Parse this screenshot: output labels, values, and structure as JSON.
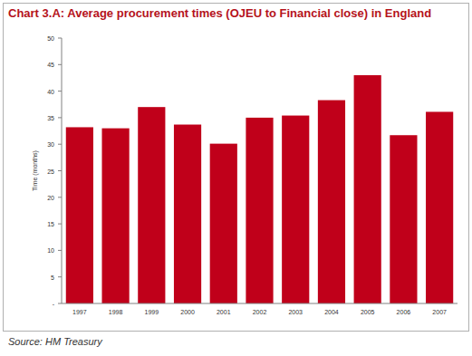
{
  "chart_data": {
    "type": "bar",
    "title": "Chart 3.A: Average procurement times (OJEU to Financial close) in England",
    "ylabel": "Time (months)",
    "source": "Source: HM Treasury",
    "categories": [
      "1997",
      "1998",
      "1999",
      "2000",
      "2001",
      "2002",
      "2003",
      "2004",
      "2005",
      "2006",
      "2007"
    ],
    "values": [
      33.2,
      33,
      37,
      33.7,
      30.1,
      35,
      35.4,
      38.3,
      43,
      31.7,
      36.1
    ],
    "color": "#c0001a",
    "ylim": [
      0,
      50
    ],
    "yticks": [
      {
        "value": 0,
        "label": "-"
      },
      5,
      10,
      15,
      20,
      25,
      30,
      35,
      40,
      45,
      50
    ],
    "grid": false
  }
}
